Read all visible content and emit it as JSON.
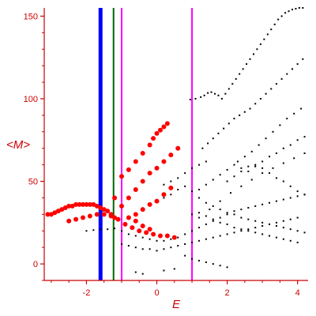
{
  "chart_data": {
    "type": "scatter",
    "title": "",
    "xlabel": "E",
    "ylabel": "<M>",
    "xlim": [
      -3.2,
      4.3
    ],
    "ylim": [
      -10,
      155
    ],
    "xticks": [
      -2,
      0,
      2,
      4
    ],
    "yticks": [
      0,
      50,
      100,
      150
    ],
    "grid": false,
    "colors": {
      "axis": "#cc0000",
      "ticks": "#cc0000",
      "small_points": "#000000",
      "large_points": "#ff0000",
      "line_blue": "#0000ff",
      "line_green": "#006600",
      "line_magenta": "#ff00ff"
    },
    "vertical_lines": [
      {
        "x": -1.6,
        "color": "#0000ff",
        "style": "thick"
      },
      {
        "x": -1.23,
        "color": "#006600",
        "style": "medium"
      },
      {
        "x": -1.0,
        "color": "#ff00ff",
        "style": "medium"
      },
      {
        "x": 1.0,
        "color": "#ff00ff",
        "style": "medium"
      }
    ],
    "series": [
      {
        "points": [
          [
            0.95,
            99.5
          ],
          [
            1.1,
            100
          ],
          [
            1.25,
            101
          ],
          [
            1.35,
            102
          ],
          [
            1.45,
            103.5
          ],
          [
            1.55,
            104
          ],
          [
            1.65,
            103
          ],
          [
            1.75,
            102
          ],
          [
            1.85,
            100
          ],
          [
            1.95,
            103
          ],
          [
            2.05,
            106
          ],
          [
            2.15,
            109
          ],
          [
            2.25,
            112
          ],
          [
            2.35,
            115
          ],
          [
            2.45,
            118
          ],
          [
            2.55,
            121
          ],
          [
            2.65,
            124
          ],
          [
            2.75,
            127
          ],
          [
            2.85,
            130
          ],
          [
            2.95,
            133
          ],
          [
            3.05,
            136
          ],
          [
            3.15,
            139
          ],
          [
            3.25,
            142
          ],
          [
            3.35,
            145
          ],
          [
            3.45,
            148
          ],
          [
            3.55,
            150
          ],
          [
            3.65,
            152
          ],
          [
            3.75,
            153
          ],
          [
            3.85,
            154
          ],
          [
            3.95,
            154.5
          ],
          [
            4.05,
            155
          ],
          [
            4.15,
            155
          ],
          [
            1.3,
            70
          ],
          [
            1.45,
            73
          ],
          [
            1.6,
            76
          ],
          [
            1.75,
            79
          ],
          [
            1.9,
            82
          ],
          [
            2.05,
            85
          ],
          [
            2.2,
            88
          ],
          [
            2.35,
            90
          ],
          [
            2.5,
            92
          ],
          [
            2.65,
            94
          ],
          [
            2.8,
            97
          ],
          [
            2.95,
            100
          ],
          [
            3.1,
            103
          ],
          [
            3.25,
            106
          ],
          [
            3.4,
            109
          ],
          [
            3.55,
            112
          ],
          [
            3.7,
            115
          ],
          [
            3.85,
            118
          ],
          [
            4.0,
            121
          ],
          [
            4.15,
            124
          ],
          [
            2.3,
            62
          ],
          [
            2.5,
            65
          ],
          [
            2.7,
            68
          ],
          [
            2.9,
            72
          ],
          [
            3.1,
            76
          ],
          [
            3.3,
            80
          ],
          [
            3.5,
            84
          ],
          [
            3.7,
            88
          ],
          [
            3.9,
            91
          ],
          [
            4.1,
            94
          ],
          [
            1.2,
            45
          ],
          [
            1.4,
            48
          ],
          [
            1.6,
            51
          ],
          [
            1.8,
            54
          ],
          [
            2.0,
            57
          ],
          [
            2.2,
            60
          ],
          [
            2.4,
            58
          ],
          [
            2.6,
            56
          ],
          [
            2.8,
            59
          ],
          [
            3.0,
            62
          ],
          [
            3.2,
            65
          ],
          [
            3.4,
            67
          ],
          [
            3.6,
            70
          ],
          [
            3.8,
            72
          ],
          [
            4.0,
            75
          ],
          [
            4.2,
            77
          ],
          [
            2.0,
            50
          ],
          [
            2.2,
            53
          ],
          [
            2.4,
            56
          ],
          [
            2.6,
            59
          ],
          [
            2.8,
            60
          ],
          [
            3.0,
            58
          ],
          [
            3.2,
            55
          ],
          [
            3.4,
            52
          ],
          [
            3.6,
            50
          ],
          [
            3.8,
            47
          ],
          [
            4.0,
            44
          ],
          [
            4.2,
            42
          ],
          [
            0.2,
            48
          ],
          [
            0.4,
            50
          ],
          [
            0.6,
            52
          ],
          [
            0.8,
            55
          ],
          [
            1.0,
            58
          ],
          [
            1.2,
            60
          ],
          [
            1.4,
            62
          ],
          [
            0.0,
            38
          ],
          [
            0.2,
            40
          ],
          [
            0.4,
            42
          ],
          [
            0.6,
            45
          ],
          [
            0.8,
            47
          ],
          [
            1.0,
            44
          ],
          [
            1.2,
            40
          ],
          [
            1.4,
            37
          ],
          [
            1.6,
            35
          ],
          [
            1.8,
            33
          ],
          [
            2.0,
            31
          ],
          [
            2.2,
            30
          ],
          [
            2.4,
            28
          ],
          [
            2.6,
            27
          ],
          [
            2.8,
            26
          ],
          [
            3.0,
            25
          ],
          [
            3.2,
            24
          ],
          [
            3.4,
            23
          ],
          [
            3.6,
            22
          ],
          [
            3.8,
            21
          ],
          [
            4.0,
            20
          ],
          [
            4.2,
            19
          ],
          [
            -2.0,
            20
          ],
          [
            -1.8,
            20.5
          ],
          [
            -1.6,
            21
          ],
          [
            -1.4,
            21
          ],
          [
            -1.2,
            21.5
          ],
          [
            -1.0,
            20
          ],
          [
            -0.8,
            18
          ],
          [
            -0.6,
            17
          ],
          [
            -0.4,
            16
          ],
          [
            -0.2,
            15
          ],
          [
            0.0,
            14
          ],
          [
            0.2,
            14
          ],
          [
            0.4,
            15
          ],
          [
            0.6,
            16
          ],
          [
            0.8,
            18
          ],
          [
            1.0,
            20
          ],
          [
            1.2,
            22
          ],
          [
            1.4,
            24
          ],
          [
            1.6,
            26
          ],
          [
            1.8,
            28
          ],
          [
            2.0,
            30
          ],
          [
            2.2,
            32
          ],
          [
            2.4,
            33
          ],
          [
            2.6,
            34
          ],
          [
            2.8,
            35
          ],
          [
            3.0,
            36
          ],
          [
            3.2,
            37
          ],
          [
            3.4,
            38
          ],
          [
            3.6,
            39
          ],
          [
            3.8,
            40
          ],
          [
            4.0,
            41
          ],
          [
            4.2,
            42
          ],
          [
            -1.0,
            12
          ],
          [
            -0.8,
            11
          ],
          [
            -0.6,
            10
          ],
          [
            -0.4,
            9
          ],
          [
            -0.2,
            9
          ],
          [
            0.0,
            8
          ],
          [
            0.2,
            9
          ],
          [
            0.4,
            10
          ],
          [
            0.6,
            11
          ],
          [
            0.8,
            12
          ],
          [
            1.0,
            13
          ],
          [
            1.2,
            14
          ],
          [
            1.4,
            15
          ],
          [
            1.6,
            16
          ],
          [
            1.8,
            17
          ],
          [
            2.0,
            18
          ],
          [
            2.2,
            19
          ],
          [
            2.4,
            20
          ],
          [
            2.6,
            21
          ],
          [
            2.8,
            22
          ],
          [
            3.0,
            23
          ],
          [
            3.2,
            24
          ],
          [
            3.4,
            25
          ],
          [
            3.6,
            26
          ],
          [
            3.8,
            27
          ],
          [
            4.0,
            28
          ],
          [
            1.0,
            30
          ],
          [
            1.2,
            31
          ],
          [
            1.4,
            29
          ],
          [
            1.6,
            27
          ],
          [
            1.8,
            25
          ],
          [
            2.0,
            24
          ],
          [
            2.2,
            22
          ],
          [
            2.4,
            21
          ],
          [
            2.6,
            20
          ],
          [
            2.8,
            19
          ],
          [
            3.0,
            18
          ],
          [
            3.2,
            17
          ],
          [
            3.4,
            16
          ],
          [
            3.6,
            15
          ],
          [
            3.8,
            14
          ],
          [
            4.0,
            13
          ],
          [
            0.8,
            5
          ],
          [
            1.0,
            3
          ],
          [
            1.2,
            2
          ],
          [
            1.4,
            1
          ],
          [
            1.6,
            0
          ],
          [
            1.8,
            -1
          ],
          [
            2.0,
            -2
          ],
          [
            -0.6,
            -5
          ],
          [
            -0.4,
            -6
          ],
          [
            0.2,
            -4
          ],
          [
            0.5,
            -3
          ],
          [
            1.2,
            28
          ],
          [
            1.5,
            33
          ],
          [
            1.8,
            38
          ],
          [
            2.1,
            43
          ],
          [
            2.4,
            47
          ],
          [
            2.7,
            51
          ],
          [
            3.0,
            55
          ],
          [
            3.3,
            58
          ],
          [
            3.6,
            61
          ],
          [
            3.9,
            64
          ],
          [
            4.2,
            67
          ]
        ]
      },
      {
        "points": [
          [
            -3.1,
            30
          ],
          [
            -3.0,
            30
          ],
          [
            -2.9,
            31
          ],
          [
            -2.8,
            32
          ],
          [
            -2.7,
            33
          ],
          [
            -2.6,
            34
          ],
          [
            -2.5,
            35
          ],
          [
            -2.4,
            35
          ],
          [
            -2.3,
            36
          ],
          [
            -2.2,
            36
          ],
          [
            -2.1,
            36
          ],
          [
            -2.0,
            36
          ],
          [
            -1.9,
            36
          ],
          [
            -1.8,
            36
          ],
          [
            -1.7,
            35
          ],
          [
            -1.6,
            34
          ],
          [
            -1.5,
            33
          ],
          [
            -1.4,
            32
          ],
          [
            -1.3,
            30
          ],
          [
            -1.2,
            28
          ],
          [
            -2.5,
            26
          ],
          [
            -2.3,
            27
          ],
          [
            -2.1,
            28
          ],
          [
            -1.9,
            29
          ],
          [
            -1.7,
            30
          ],
          [
            -1.5,
            30
          ],
          [
            -1.3,
            29
          ],
          [
            -1.1,
            27
          ],
          [
            -0.9,
            24
          ],
          [
            -0.7,
            22
          ],
          [
            -0.5,
            20
          ],
          [
            -0.3,
            19
          ],
          [
            -0.1,
            18
          ],
          [
            0.1,
            17
          ],
          [
            0.3,
            17
          ],
          [
            0.5,
            16
          ],
          [
            -1.0,
            53
          ],
          [
            -0.8,
            57
          ],
          [
            -0.6,
            62
          ],
          [
            -0.4,
            67
          ],
          [
            -0.2,
            72
          ],
          [
            -0.1,
            76
          ],
          [
            0.0,
            79
          ],
          [
            0.1,
            81
          ],
          [
            0.2,
            83
          ],
          [
            0.3,
            85
          ],
          [
            -0.8,
            40
          ],
          [
            -0.6,
            45
          ],
          [
            -0.4,
            50
          ],
          [
            -0.2,
            55
          ],
          [
            0.0,
            58
          ],
          [
            0.2,
            62
          ],
          [
            0.4,
            66
          ],
          [
            0.6,
            70
          ],
          [
            -0.6,
            30
          ],
          [
            -0.4,
            33
          ],
          [
            -0.2,
            36
          ],
          [
            0.0,
            38
          ],
          [
            0.2,
            42
          ],
          [
            0.4,
            46
          ],
          [
            -1.2,
            40
          ],
          [
            -1.0,
            35
          ],
          [
            -0.8,
            28
          ],
          [
            -0.6,
            26
          ],
          [
            -0.4,
            23
          ],
          [
            -0.2,
            21
          ]
        ]
      }
    ]
  }
}
